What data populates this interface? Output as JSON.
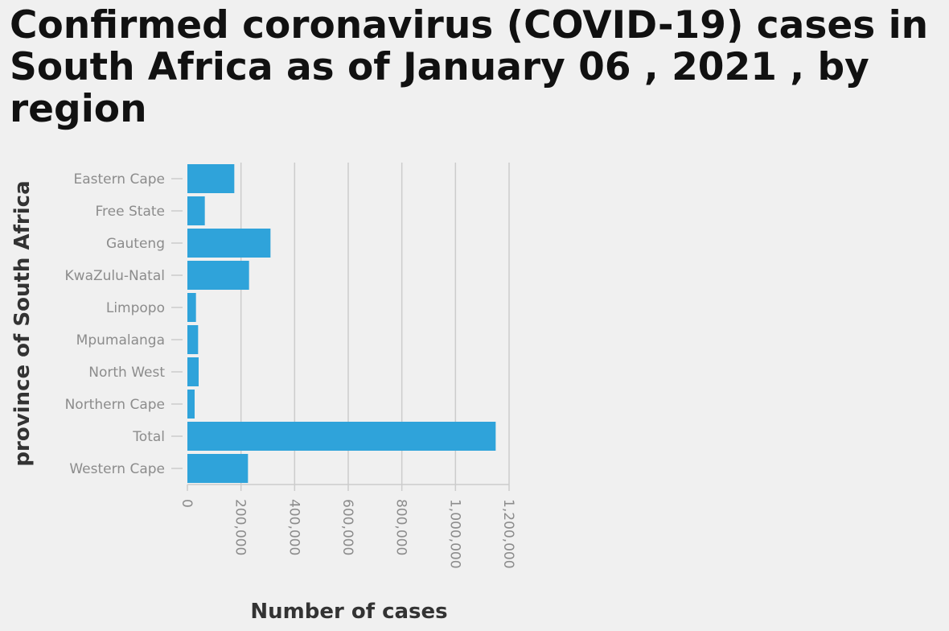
{
  "chart_data": {
    "type": "bar",
    "orientation": "horizontal",
    "title": "Confirmed coronavirus (COVID-19) cases in South Africa as of January 06 , 2021 , by region",
    "xlabel": "Number of cases",
    "ylabel": "province of South Africa",
    "categories": [
      "Eastern Cape",
      "Free State",
      "Gauteng",
      "KwaZulu-Natal",
      "Limpopo",
      "Mpumalanga",
      "North West",
      "Northern Cape",
      "Total",
      "Western Cape"
    ],
    "values": [
      175000,
      65000,
      310000,
      230000,
      32000,
      40000,
      42000,
      27000,
      1150000,
      226000
    ],
    "xlim": [
      0,
      1200000
    ],
    "xticks": [
      0,
      200000,
      400000,
      600000,
      800000,
      1000000,
      1200000
    ],
    "xtick_labels": [
      "0",
      "200,000",
      "400,000",
      "600,000",
      "800,000",
      "1,000,000",
      "1,200,000"
    ],
    "grid": "vertical",
    "legend": "none",
    "colors": {
      "bar": "#2fa3da",
      "grid": "#cccccc",
      "tick_text": "#8c8c8c",
      "axis_title": "#333333"
    }
  }
}
